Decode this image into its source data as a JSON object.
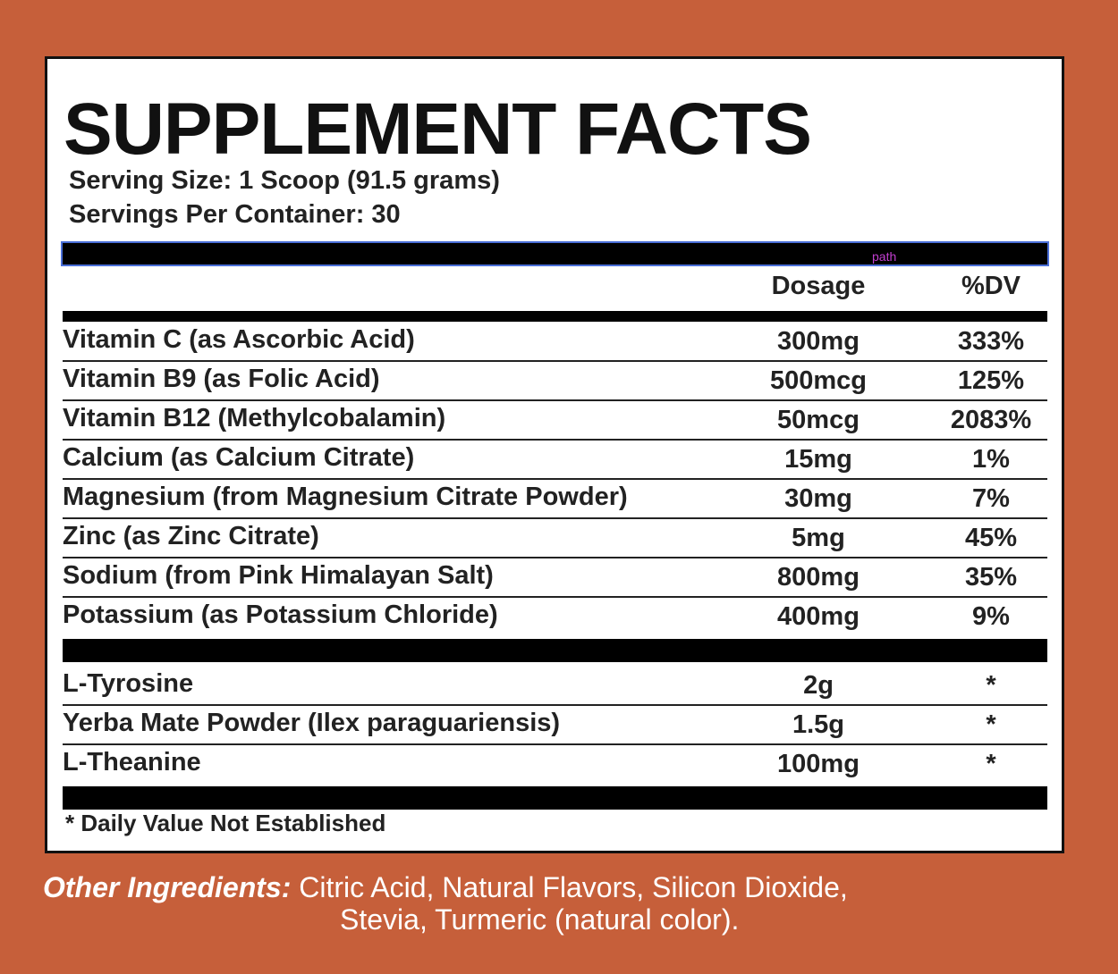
{
  "header": {
    "title": "SUPPLEMENT FACTS",
    "serving_size": "Serving Size: 1 Scoop (91.5 grams)",
    "servings_per_container": "Servings Per Container: 30",
    "editor_label": "path"
  },
  "table": {
    "columns": [
      "Dosage",
      "%DV"
    ],
    "sections": [
      {
        "rows": [
          [
            "Vitamin C (as Ascorbic Acid)",
            "300mg",
            "333%"
          ],
          [
            "Vitamin B9 (as Folic Acid)",
            "500mcg",
            "125%"
          ],
          [
            "Vitamin B12 (Methylcobalamin)",
            "50mcg",
            "2083%"
          ],
          [
            "Calcium (as Calcium Citrate)",
            "15mg",
            "1%"
          ],
          [
            "Magnesium (from Magnesium Citrate Powder)",
            "30mg",
            "7%"
          ],
          [
            "Zinc (as Zinc Citrate)",
            "5mg",
            "45%"
          ],
          [
            "Sodium (from Pink Himalayan Salt)",
            "800mg",
            "35%"
          ],
          [
            "Potassium (as Potassium Chloride)",
            "400mg",
            "9%"
          ]
        ]
      },
      {
        "rows": [
          [
            "L-Tyrosine",
            "2g",
            "*"
          ],
          [
            "Yerba Mate Powder (Ilex paraguariensis)",
            "1.5g",
            "*"
          ],
          [
            "L-Theanine",
            "100mg",
            "*"
          ]
        ]
      }
    ]
  },
  "footnote": "* Daily Value Not Established",
  "other_ingredients": {
    "label": "Other Ingredients:",
    "lines": [
      "Citric Acid, Natural Flavors, Silicon Dioxide,",
      "Stevia, Turmeric (natural color)."
    ]
  }
}
